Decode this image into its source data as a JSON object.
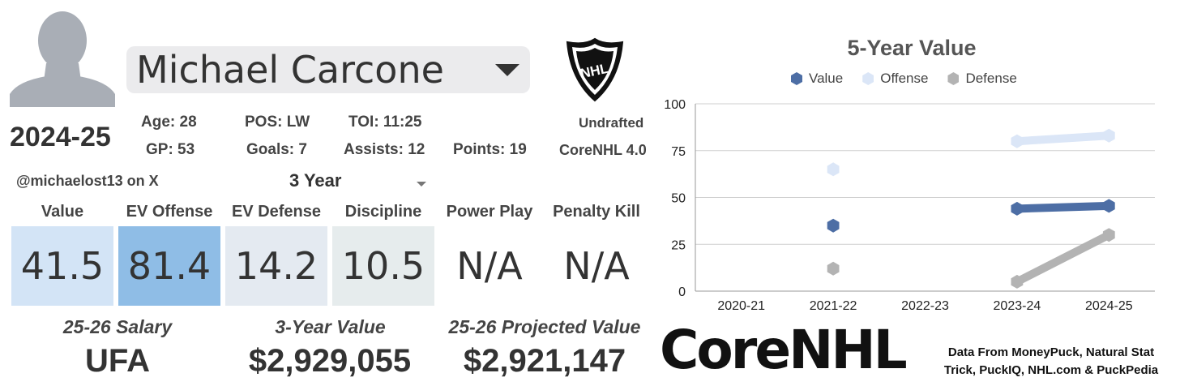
{
  "player": {
    "name": "Michael Carcone",
    "season": "2024-25",
    "handle": "@michaelost13 on X",
    "age": "Age: 28",
    "pos": "POS: LW",
    "toi": "TOI: 11:25",
    "gp": "GP: 53",
    "goals": "Goals: 7",
    "assists": "Assists: 12",
    "points": "Points: 19",
    "draft": "Undrafted",
    "model": "CoreNHL 4.0"
  },
  "colors": {
    "value": "#4d6ea5",
    "offense": "#dbe6f7",
    "defense": "#b3b3b3",
    "box_value": "#d3e4f6",
    "box_offense": "#8fbde6",
    "box_defense": "#e4eaf1",
    "box_discipline": "#e6eced"
  },
  "period_selector": {
    "value": "3 Year"
  },
  "categories": [
    {
      "label": "Value",
      "value": "41.5"
    },
    {
      "label": "EV Offense",
      "value": "81.4"
    },
    {
      "label": "EV Defense",
      "value": "14.2"
    },
    {
      "label": "Discipline",
      "value": "10.5"
    },
    {
      "label": "Power Play",
      "value": "N/A"
    },
    {
      "label": "Penalty Kill",
      "value": "N/A"
    }
  ],
  "summary": {
    "salary_label": "25-26 Salary",
    "salary_value": "UFA",
    "three_year_label": "3-Year Value",
    "three_year_value": "$2,929,055",
    "projected_label": "25-26 Projected Value",
    "projected_value": "$2,921,147"
  },
  "footer": {
    "brand": "CoreNHL",
    "source_line1": "Data From MoneyPuck, Natural Stat",
    "source_line2": "Trick, PuckIQ, NHL.com & PuckPedia"
  },
  "logo_text": "NHL",
  "chart_data": {
    "type": "line",
    "title": "5-Year Value",
    "categories": [
      "2020-21",
      "2021-22",
      "2022-23",
      "2023-24",
      "2024-25"
    ],
    "series": [
      {
        "name": "Value",
        "values": [
          null,
          35,
          null,
          44,
          45.5
        ]
      },
      {
        "name": "Offense",
        "values": [
          null,
          65,
          null,
          80,
          83
        ]
      },
      {
        "name": "Defense",
        "values": [
          null,
          12,
          null,
          5,
          30
        ]
      }
    ],
    "ylim": [
      0,
      100
    ],
    "yticks": [
      "0",
      "25",
      "50",
      "75",
      "100"
    ],
    "grid": true,
    "legend": "top"
  }
}
